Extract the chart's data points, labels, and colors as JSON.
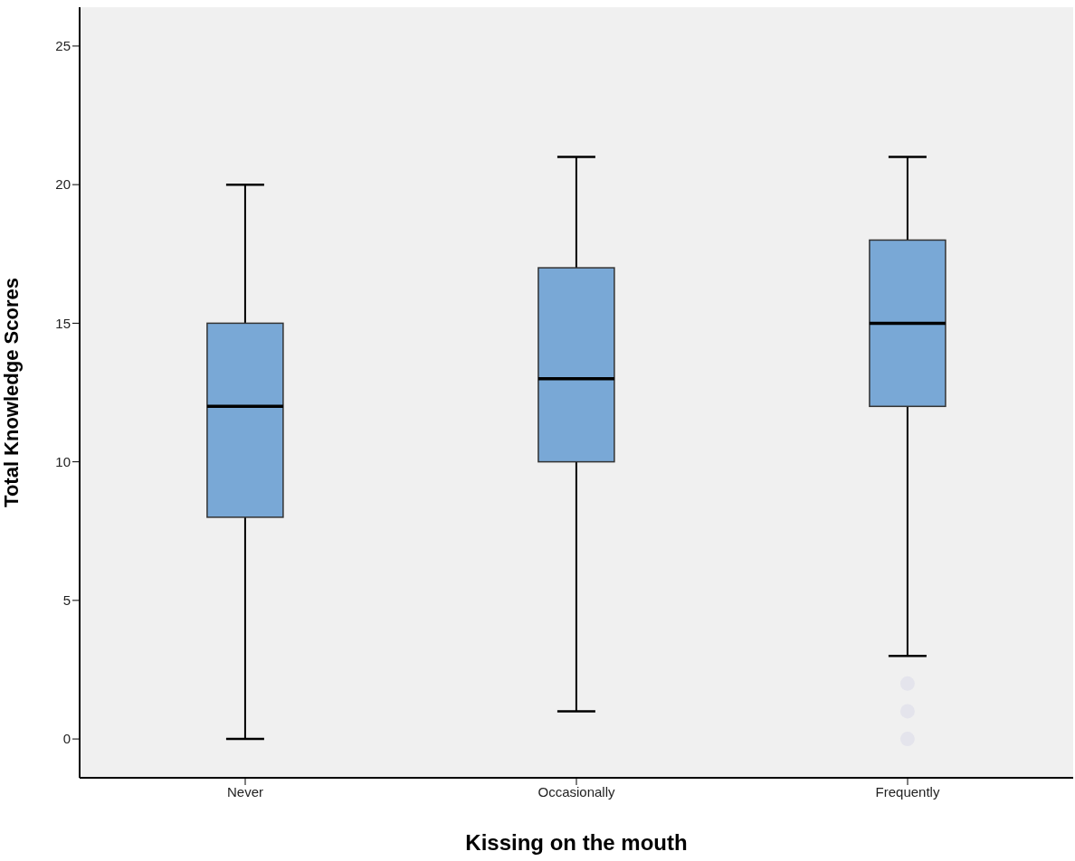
{
  "chart_data": {
    "type": "box",
    "xlabel": "Kissing on the mouth",
    "ylabel": "Total Knowledge Scores",
    "categories": [
      "Never",
      "Occasionally",
      "Frequently"
    ],
    "boxes": [
      {
        "low": 0,
        "q1": 8,
        "median": 12,
        "q3": 15,
        "high": 20
      },
      {
        "low": 1,
        "q1": 10,
        "median": 13,
        "q3": 17,
        "high": 21
      },
      {
        "low": 3,
        "q1": 12,
        "median": 15,
        "q3": 18,
        "high": 21,
        "outliers": [
          0,
          1,
          2
        ]
      }
    ],
    "color": "#79a8d6",
    "ylim": [
      -1.4,
      26.4
    ],
    "yticks": [
      0,
      5,
      10,
      15,
      20,
      25
    ],
    "grid": false
  }
}
